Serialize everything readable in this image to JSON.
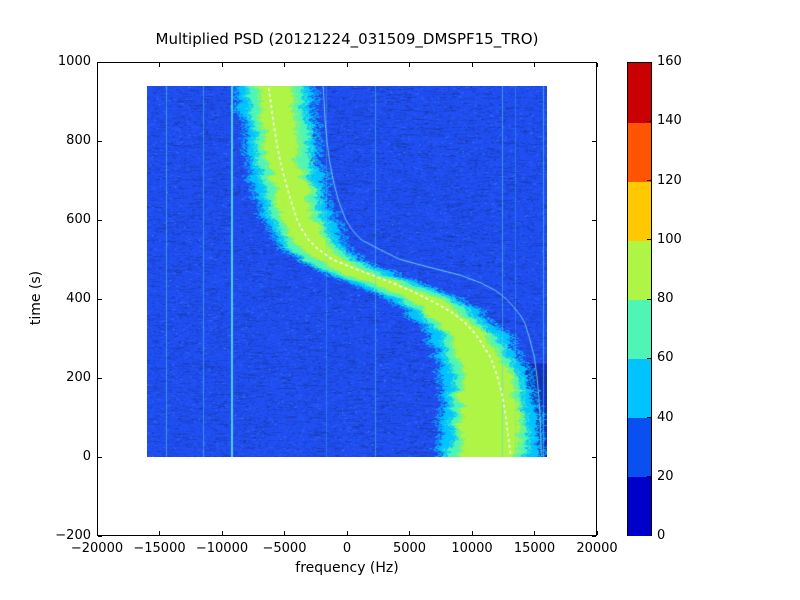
{
  "figure": {
    "title": "Multiplied PSD (20121224_031509_DMSPF15_TRO)"
  },
  "chart_data": {
    "type": "heatmap",
    "title": "Multiplied PSD (20121224_031509_DMSPF15_TRO)",
    "xlabel": "frequency (Hz)",
    "ylabel": "time (s)",
    "xlim": [
      -20000,
      20000
    ],
    "ylim": [
      -200,
      1000
    ],
    "grid": false,
    "x_ticks": {
      "values": [
        -20000,
        -15000,
        -10000,
        -5000,
        0,
        5000,
        10000,
        15000,
        20000
      ],
      "labels": [
        "−20000",
        "−15000",
        "−10000",
        "−5000",
        "0",
        "5000",
        "10000",
        "15000",
        "20000"
      ]
    },
    "y_ticks": {
      "values": [
        1000,
        800,
        600,
        400,
        200,
        0,
        -200
      ],
      "labels": [
        "1000",
        "800",
        "600",
        "400",
        "200",
        "0",
        "−200"
      ]
    },
    "colorbar": {
      "position": "right",
      "ticks": {
        "values": [
          0,
          20,
          40,
          60,
          80,
          100,
          120,
          140,
          160
        ],
        "labels": [
          "0",
          "20",
          "40",
          "60",
          "80",
          "100",
          "120",
          "140",
          "160"
        ]
      },
      "levels": [
        {
          "range": [
            0,
            20
          ],
          "color": "#0000c8"
        },
        {
          "range": [
            20,
            40
          ],
          "color": "#0a50f0"
        },
        {
          "range": [
            40,
            60
          ],
          "color": "#00c3ff"
        },
        {
          "range": [
            60,
            80
          ],
          "color": "#4ff5b5"
        },
        {
          "range": [
            80,
            100
          ],
          "color": "#aef545"
        },
        {
          "range": [
            100,
            120
          ],
          "color": "#ffc800"
        },
        {
          "range": [
            120,
            140
          ],
          "color": "#ff5400"
        },
        {
          "range": [
            140,
            160
          ],
          "color": "#c80000"
        }
      ]
    },
    "heatmap": {
      "freq_extent_hz": [
        -16000,
        16000
      ],
      "time_extent_s": [
        0,
        940
      ],
      "background_psd_level": 30,
      "noise_colors": {
        "base": "#1f4ff2",
        "dark": "#16389f",
        "mid_dark": "#1d40d4",
        "light": "#3a66ff",
        "speck_cyan": "#38bdf0"
      },
      "band_colors": {
        "outer": "#00c3ff",
        "mid": "#4ff5b5",
        "core": "#aef545",
        "speck": "#ffc800"
      },
      "band_center_hz_vs_time": [
        [
          0,
          11400
        ],
        [
          50,
          11350
        ],
        [
          100,
          11300
        ],
        [
          150,
          11200
        ],
        [
          200,
          11000
        ],
        [
          250,
          10600
        ],
        [
          300,
          9900
        ],
        [
          320,
          9400
        ],
        [
          340,
          8800
        ],
        [
          360,
          8100
        ],
        [
          380,
          7200
        ],
        [
          400,
          6100
        ],
        [
          420,
          4800
        ],
        [
          440,
          3200
        ],
        [
          460,
          1300
        ],
        [
          480,
          -100
        ],
        [
          500,
          -1300
        ],
        [
          525,
          -2400
        ],
        [
          550,
          -3100
        ],
        [
          600,
          -3900
        ],
        [
          650,
          -4400
        ],
        [
          700,
          -4800
        ],
        [
          750,
          -5100
        ],
        [
          800,
          -5300
        ],
        [
          850,
          -5500
        ],
        [
          900,
          -5650
        ],
        [
          940,
          -5800
        ]
      ],
      "band_halfwidth_hz": {
        "outer": [
          [
            0,
            3900
          ],
          [
            150,
            3600
          ],
          [
            300,
            2900
          ],
          [
            450,
            2500
          ],
          [
            600,
            2600
          ],
          [
            800,
            2700
          ],
          [
            940,
            2800
          ]
        ],
        "mid": [
          [
            0,
            3000
          ],
          [
            150,
            2700
          ],
          [
            300,
            2100
          ],
          [
            450,
            1800
          ],
          [
            600,
            1900
          ],
          [
            800,
            2000
          ],
          [
            940,
            2100
          ]
        ],
        "core": [
          [
            0,
            2400
          ],
          [
            150,
            2100
          ],
          [
            300,
            1400
          ],
          [
            450,
            1050
          ],
          [
            600,
            1150
          ],
          [
            800,
            1250
          ],
          [
            940,
            1350
          ]
        ]
      },
      "white_track_hz_vs_time": [
        [
          0,
          13100
        ],
        [
          50,
          12900
        ],
        [
          100,
          12700
        ],
        [
          150,
          12450
        ],
        [
          200,
          12050
        ],
        [
          250,
          11500
        ],
        [
          300,
          10500
        ],
        [
          320,
          10000
        ],
        [
          340,
          9400
        ],
        [
          360,
          8600
        ],
        [
          380,
          7600
        ],
        [
          400,
          6400
        ],
        [
          420,
          5100
        ],
        [
          440,
          3600
        ],
        [
          460,
          2000
        ],
        [
          480,
          300
        ],
        [
          500,
          -1200
        ],
        [
          525,
          -2300
        ],
        [
          550,
          -3100
        ],
        [
          575,
          -3600
        ],
        [
          600,
          -4000
        ],
        [
          650,
          -4500
        ],
        [
          700,
          -4950
        ],
        [
          750,
          -5350
        ],
        [
          800,
          -5650
        ],
        [
          850,
          -5900
        ],
        [
          900,
          -6100
        ],
        [
          940,
          -6300
        ]
      ],
      "overlay_curve_hz_vs_time": [
        [
          0,
          15550
        ],
        [
          50,
          15500
        ],
        [
          100,
          15450
        ],
        [
          150,
          15350
        ],
        [
          200,
          15200
        ],
        [
          250,
          15000
        ],
        [
          300,
          14600
        ],
        [
          340,
          14200
        ],
        [
          360,
          13800
        ],
        [
          380,
          13300
        ],
        [
          400,
          12700
        ],
        [
          420,
          11900
        ],
        [
          440,
          10700
        ],
        [
          460,
          9000
        ],
        [
          480,
          6500
        ],
        [
          500,
          4200
        ],
        [
          525,
          2600
        ],
        [
          550,
          1100
        ],
        [
          575,
          400
        ],
        [
          600,
          -100
        ],
        [
          650,
          -700
        ],
        [
          700,
          -1100
        ],
        [
          750,
          -1400
        ],
        [
          800,
          -1600
        ],
        [
          850,
          -1750
        ],
        [
          940,
          -1900
        ]
      ],
      "interference_lines": [
        {
          "freq_hz": -14500,
          "alpha": 0.55,
          "width": 1
        },
        {
          "freq_hz": -11550,
          "alpha": 0.5,
          "width": 1
        },
        {
          "freq_hz": -9200,
          "alpha": 0.95,
          "width": 2
        },
        {
          "freq_hz": -1700,
          "alpha": 0.3,
          "width": 1
        },
        {
          "freq_hz": 2250,
          "alpha": 0.5,
          "width": 1
        },
        {
          "freq_hz": 12400,
          "alpha": 0.55,
          "width": 1
        },
        {
          "freq_hz": 13450,
          "alpha": 0.3,
          "width": 1
        },
        {
          "freq_hz": 15700,
          "alpha": 0.6,
          "width": 1
        }
      ],
      "track_color": "#ffffff",
      "overlay_color": "#7ce1f5",
      "line_color": "#55d6f0"
    }
  }
}
